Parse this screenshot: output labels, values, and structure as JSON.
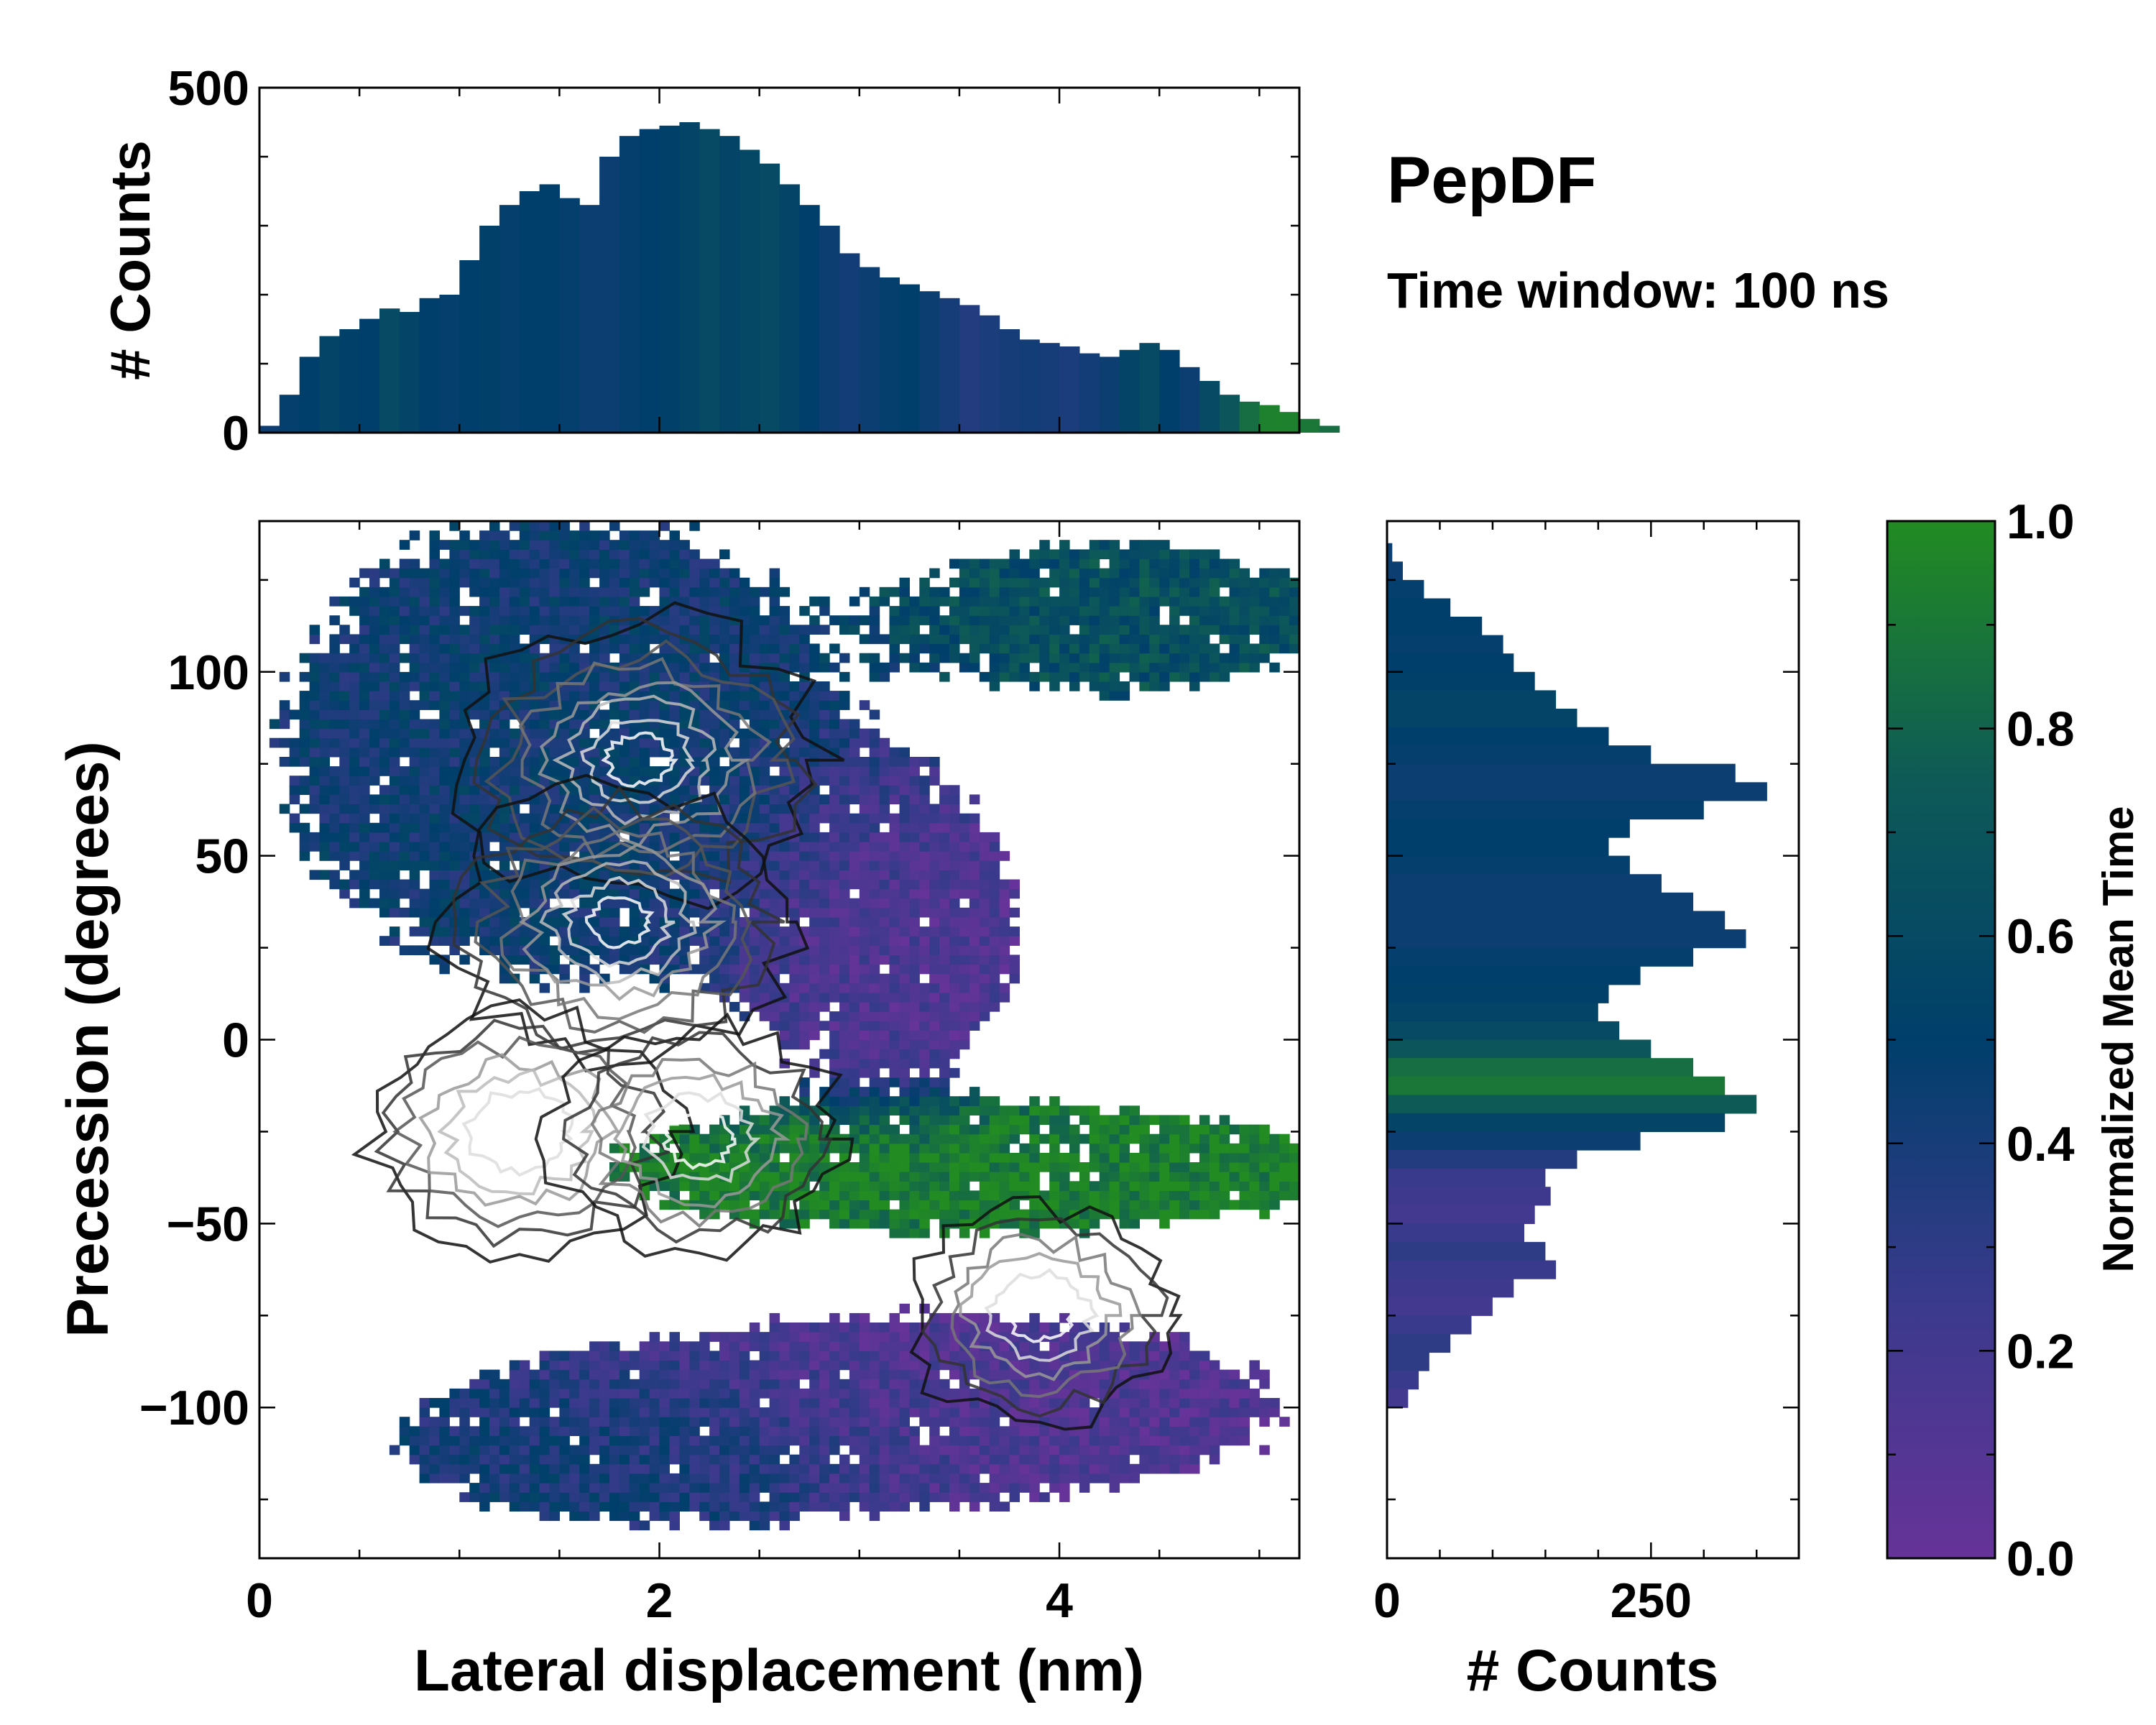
{
  "chart_data": {
    "type": "heatmap",
    "title": "PepDF",
    "subtitle": "Time window: 100 ns",
    "colormap": {
      "stops": [
        "#663399",
        "#3a3a8c",
        "#003f6b",
        "#0e5a57",
        "#228b22"
      ],
      "label": "Normalized Mean Time",
      "range": [
        0.0,
        1.0
      ],
      "ticks": [
        "0.0",
        "0.2",
        "0.4",
        "0.6",
        "0.8",
        "1.0"
      ],
      "tick_values": [
        0,
        0.2,
        0.4,
        0.6,
        0.8,
        1.0
      ]
    },
    "main": {
      "xlabel": "Lateral displacement (nm)",
      "ylabel": "Precession (degrees)",
      "xlim": [
        0,
        5.2
      ],
      "ylim": [
        -141,
        141
      ],
      "xticks": [
        "0",
        "2",
        "4"
      ],
      "xtick_values": [
        0,
        2,
        4
      ],
      "yticks": [
        "−100",
        "−50",
        "0",
        "50",
        "100"
      ],
      "ytick_values": [
        -100,
        -50,
        0,
        50,
        100
      ],
      "regions": [
        {
          "label": "upper-left-blob",
          "x": 1.5,
          "y": 80,
          "sx": 1.2,
          "sy": 55,
          "t": 0.45
        },
        {
          "label": "upper-right-blob",
          "x": 4.3,
          "y": 115,
          "sx": 0.9,
          "sy": 18,
          "t": 0.65
        },
        {
          "label": "center-purple",
          "x": 3.1,
          "y": 30,
          "sx": 0.6,
          "sy": 35,
          "t": 0.12
        },
        {
          "label": "green-band",
          "x": 3.6,
          "y": -35,
          "sx": 1.6,
          "sy": 15,
          "t": 0.95
        },
        {
          "label": "lower-purple",
          "x": 3.4,
          "y": -100,
          "sx": 1.5,
          "sy": 22,
          "t": 0.12
        },
        {
          "label": "lower-blue",
          "x": 1.9,
          "y": -110,
          "sx": 1.0,
          "sy": 18,
          "t": 0.45
        }
      ],
      "density_peaks": [
        {
          "x": 1.9,
          "y": 76,
          "weight": 1.0
        },
        {
          "x": 1.8,
          "y": 32,
          "weight": 0.9
        },
        {
          "x": 1.3,
          "y": -25,
          "weight": 0.7
        },
        {
          "x": 2.2,
          "y": -27,
          "weight": 0.6
        },
        {
          "x": 3.9,
          "y": -75,
          "weight": 0.5
        }
      ]
    },
    "top_hist": {
      "ylabel": "# Counts",
      "ylim": [
        0,
        500
      ],
      "yticks": [
        "0",
        "500"
      ],
      "ytick_values": [
        0,
        500
      ],
      "bin_start": 0,
      "bin_width": 0.1,
      "counts": [
        10,
        55,
        110,
        140,
        150,
        165,
        180,
        175,
        195,
        200,
        250,
        300,
        330,
        350,
        360,
        340,
        330,
        400,
        430,
        440,
        445,
        450,
        440,
        430,
        410,
        390,
        360,
        330,
        300,
        260,
        240,
        225,
        215,
        205,
        195,
        185,
        170,
        150,
        135,
        130,
        125,
        115,
        110,
        120,
        130,
        120,
        95,
        75,
        55,
        45,
        40,
        30,
        20,
        10
      ],
      "mean_time": [
        0.45,
        0.48,
        0.5,
        0.55,
        0.52,
        0.5,
        0.6,
        0.55,
        0.5,
        0.48,
        0.5,
        0.52,
        0.48,
        0.5,
        0.5,
        0.48,
        0.45,
        0.45,
        0.48,
        0.5,
        0.52,
        0.55,
        0.6,
        0.55,
        0.58,
        0.6,
        0.55,
        0.5,
        0.45,
        0.42,
        0.45,
        0.48,
        0.5,
        0.45,
        0.4,
        0.35,
        0.38,
        0.4,
        0.42,
        0.4,
        0.38,
        0.42,
        0.45,
        0.55,
        0.6,
        0.5,
        0.45,
        0.6,
        0.7,
        0.85,
        0.95,
        0.95,
        0.9,
        0.85
      ]
    },
    "right_hist": {
      "xlabel": "# Counts",
      "xlim": [
        0,
        390
      ],
      "xticks": [
        "0",
        "250"
      ],
      "xtick_values": [
        0,
        250
      ],
      "bin_start": 135,
      "bin_width": -5,
      "counts": [
        5,
        15,
        35,
        60,
        90,
        110,
        120,
        140,
        160,
        180,
        210,
        250,
        330,
        360,
        300,
        230,
        210,
        230,
        260,
        290,
        320,
        340,
        290,
        240,
        210,
        200,
        220,
        250,
        290,
        320,
        350,
        320,
        240,
        180,
        150,
        155,
        140,
        130,
        150,
        160,
        120,
        100,
        80,
        60,
        40,
        30,
        20
      ],
      "mean_time": [
        0.45,
        0.45,
        0.48,
        0.5,
        0.5,
        0.48,
        0.5,
        0.52,
        0.55,
        0.55,
        0.5,
        0.48,
        0.45,
        0.45,
        0.48,
        0.5,
        0.5,
        0.48,
        0.45,
        0.45,
        0.45,
        0.45,
        0.48,
        0.5,
        0.52,
        0.55,
        0.6,
        0.7,
        0.85,
        0.9,
        0.75,
        0.55,
        0.45,
        0.35,
        0.25,
        0.22,
        0.2,
        0.25,
        0.3,
        0.25,
        0.22,
        0.2,
        0.25,
        0.3,
        0.3,
        0.25,
        0.2
      ]
    }
  }
}
